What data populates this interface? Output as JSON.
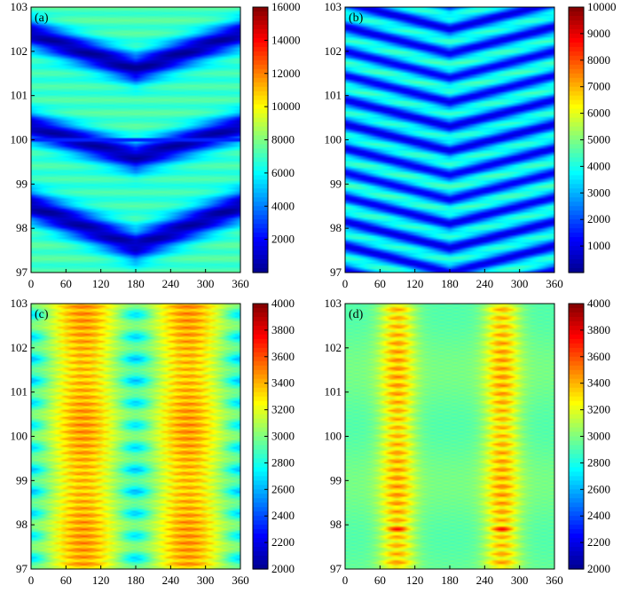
{
  "chart_data": [
    {
      "type": "heatmap",
      "panel_label": "(a)",
      "x_ticks": [
        "0",
        "60",
        "120",
        "180",
        "240",
        "300",
        "360"
      ],
      "y_ticks": [
        "97",
        "98",
        "99",
        "100",
        "101",
        "102",
        "103"
      ],
      "xlim": [
        0,
        360
      ],
      "ylim": [
        97,
        103
      ],
      "colorbar_ticks": [
        "2000",
        "4000",
        "6000",
        "8000",
        "10000",
        "12000",
        "14000",
        "16000"
      ],
      "colorbar_range": [
        0,
        16000
      ],
      "description_pattern": "three dark low-intensity V-shaped bands, lowest near x=180",
      "bands": [
        {
          "center_at_0": 102.4,
          "center_at_180": 101.6,
          "width": 0.32,
          "value": 500
        },
        {
          "center_at_0": 100.3,
          "center_at_180": 99.6,
          "width": 0.32,
          "value": 500
        },
        {
          "center_at_0": 98.5,
          "center_at_180": 97.6,
          "width": 0.35,
          "value": 500
        }
      ],
      "background_value": 7000
    },
    {
      "type": "heatmap",
      "panel_label": "(b)",
      "x_ticks": [
        "0",
        "60",
        "120",
        "180",
        "240",
        "300",
        "360"
      ],
      "y_ticks": [
        "97",
        "98",
        "99",
        "100",
        "101",
        "102",
        "103"
      ],
      "xlim": [
        0,
        360
      ],
      "ylim": [
        97,
        103
      ],
      "colorbar_ticks": [
        "1000",
        "2000",
        "3000",
        "4000",
        "5000",
        "6000",
        "7000",
        "8000",
        "9000",
        "10000"
      ],
      "colorbar_range": [
        0,
        10000
      ],
      "description_pattern": "eleven narrow dark V-shaped bands spaced ~0.55, lowest near x=180",
      "band_spacing": 0.55,
      "band_sag": 0.6,
      "band_width": 0.14,
      "band_value": 1000,
      "background_value": 4200
    },
    {
      "type": "heatmap",
      "panel_label": "(c)",
      "x_ticks": [
        "0",
        "60",
        "120",
        "180",
        "240",
        "300",
        "360"
      ],
      "y_ticks": [
        "97",
        "98",
        "99",
        "100",
        "101",
        "102",
        "103"
      ],
      "xlim": [
        0,
        360
      ],
      "ylim": [
        97,
        103
      ],
      "colorbar_ticks": [
        "2000",
        "2200",
        "2400",
        "2600",
        "2800",
        "3000",
        "3200",
        "3400",
        "3600",
        "3800",
        "4000"
      ],
      "colorbar_range": [
        2000,
        4000
      ],
      "description_pattern": "two hot vertical columns near x=90 and x=270 with periodic blue pockets near x=0, 180, 360",
      "column_centers": [
        90,
        270
      ],
      "column_peak_value": 3400,
      "pocket_value": 2650,
      "pocket_spacing": 0.5
    },
    {
      "type": "heatmap",
      "panel_label": "(d)",
      "x_ticks": [
        "0",
        "60",
        "120",
        "180",
        "240",
        "300",
        "360"
      ],
      "y_ticks": [
        "97",
        "98",
        "99",
        "100",
        "101",
        "102",
        "103"
      ],
      "xlim": [
        0,
        360
      ],
      "ylim": [
        97,
        103
      ],
      "colorbar_ticks": [
        "2000",
        "2200",
        "2400",
        "2600",
        "2800",
        "3000",
        "3200",
        "3400",
        "3600",
        "3800",
        "4000"
      ],
      "colorbar_range": [
        2000,
        4000
      ],
      "description_pattern": "two hot vertical columns near x=90 and x=270 on a cyan-green background, red spots near y=97.9",
      "column_centers": [
        90,
        270
      ],
      "column_peak_value": 3350,
      "background_value": 2950,
      "hotspot_y": 97.9,
      "hotspot_value": 3750
    }
  ],
  "colormap": [
    "#00008f",
    "#0000ff",
    "#007fff",
    "#00ffff",
    "#7fff7f",
    "#ffff00",
    "#ff7f00",
    "#ff0000",
    "#7f0000"
  ]
}
